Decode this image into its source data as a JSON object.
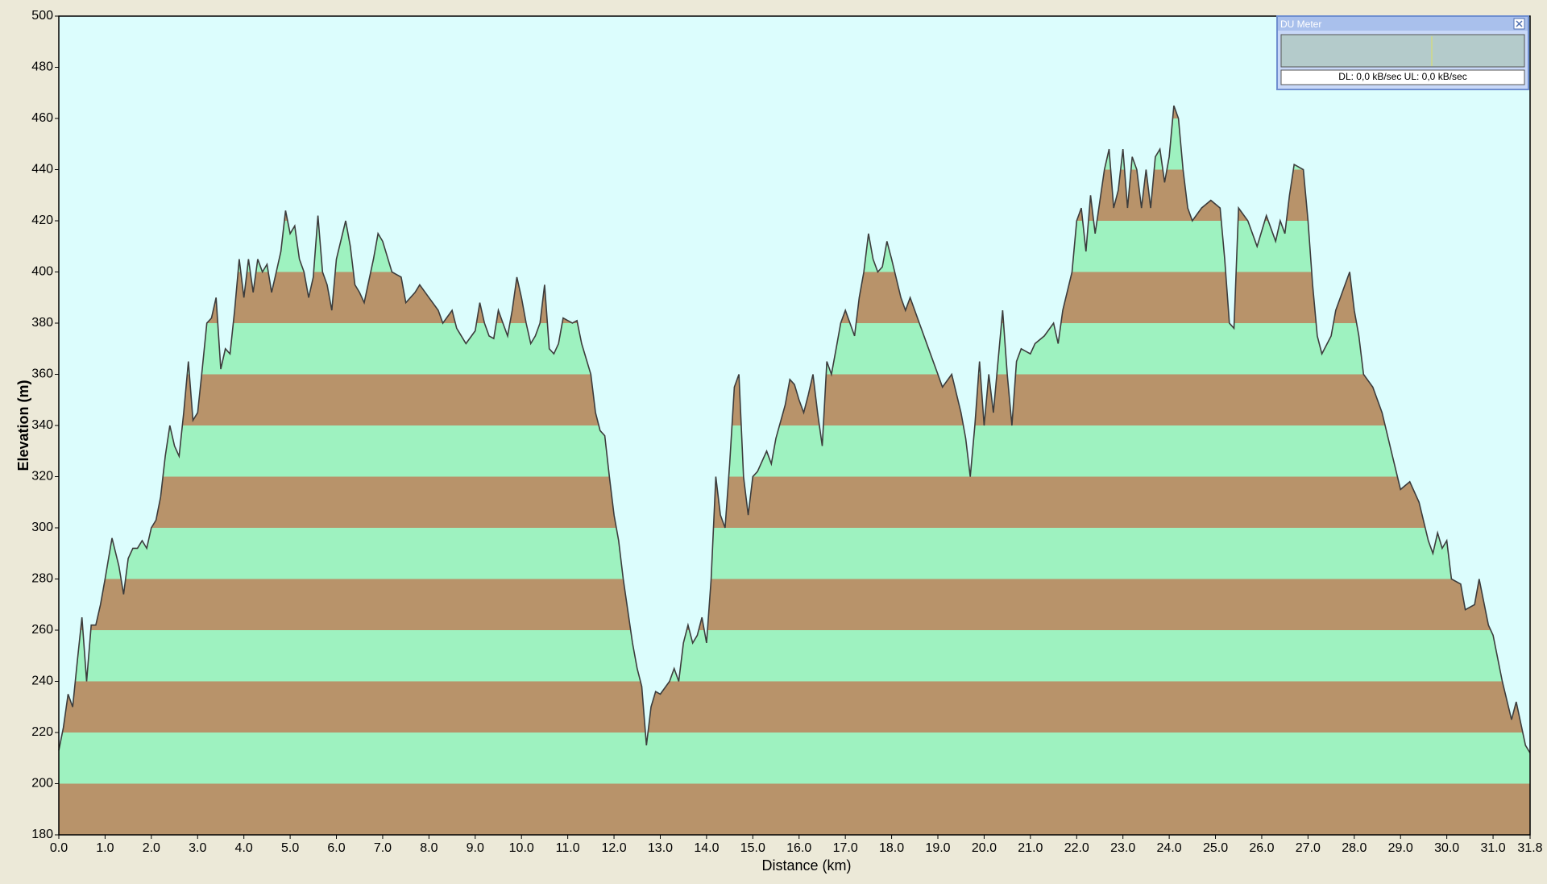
{
  "chart_data": {
    "type": "area",
    "xlabel": "Distance   (km)",
    "ylabel": "Elevation (m)",
    "x": [
      0.0,
      0.1,
      0.2,
      0.3,
      0.4,
      0.5,
      0.6,
      0.7,
      0.8,
      0.9,
      1.0,
      1.15,
      1.3,
      1.4,
      1.5,
      1.6,
      1.7,
      1.8,
      1.9,
      2.0,
      2.1,
      2.2,
      2.3,
      2.4,
      2.5,
      2.6,
      2.7,
      2.8,
      2.9,
      3.0,
      3.1,
      3.2,
      3.3,
      3.4,
      3.5,
      3.6,
      3.7,
      3.8,
      3.9,
      4.0,
      4.1,
      4.2,
      4.3,
      4.4,
      4.5,
      4.6,
      4.7,
      4.8,
      4.9,
      5.0,
      5.1,
      5.2,
      5.3,
      5.4,
      5.5,
      5.6,
      5.7,
      5.8,
      5.9,
      6.0,
      6.2,
      6.3,
      6.4,
      6.5,
      6.6,
      6.8,
      6.9,
      7.0,
      7.2,
      7.4,
      7.5,
      7.7,
      7.8,
      8.0,
      8.2,
      8.3,
      8.5,
      8.6,
      8.8,
      9.0,
      9.1,
      9.2,
      9.3,
      9.4,
      9.5,
      9.6,
      9.7,
      9.8,
      9.9,
      10.0,
      10.1,
      10.2,
      10.3,
      10.4,
      10.5,
      10.6,
      10.7,
      10.8,
      10.9,
      11.1,
      11.2,
      11.3,
      11.5,
      11.6,
      11.7,
      11.8,
      11.9,
      12.0,
      12.1,
      12.2,
      12.4,
      12.5,
      12.6,
      12.7,
      12.8,
      12.9,
      13.0,
      13.2,
      13.3,
      13.4,
      13.5,
      13.6,
      13.7,
      13.8,
      13.9,
      14.0,
      14.1,
      14.2,
      14.3,
      14.4,
      14.5,
      14.6,
      14.7,
      14.8,
      14.9,
      15.0,
      15.1,
      15.3,
      15.4,
      15.5,
      15.7,
      15.8,
      15.9,
      16.0,
      16.1,
      16.2,
      16.3,
      16.4,
      16.5,
      16.6,
      16.7,
      16.8,
      16.9,
      17.0,
      17.2,
      17.3,
      17.4,
      17.5,
      17.6,
      17.7,
      17.8,
      17.9,
      18.0,
      18.2,
      18.3,
      18.4,
      18.6,
      18.8,
      19.0,
      19.1,
      19.3,
      19.5,
      19.6,
      19.7,
      19.8,
      19.9,
      20.0,
      20.1,
      20.2,
      20.4,
      20.5,
      20.6,
      20.7,
      20.8,
      21.0,
      21.1,
      21.3,
      21.5,
      21.6,
      21.7,
      21.9,
      22.0,
      22.1,
      22.2,
      22.3,
      22.4,
      22.6,
      22.7,
      22.8,
      22.9,
      23.0,
      23.1,
      23.2,
      23.3,
      23.4,
      23.5,
      23.6,
      23.7,
      23.8,
      23.9,
      24.0,
      24.1,
      24.2,
      24.3,
      24.4,
      24.5,
      24.7,
      24.9,
      25.1,
      25.2,
      25.3,
      25.4,
      25.5,
      25.7,
      25.9,
      26.1,
      26.3,
      26.4,
      26.5,
      26.6,
      26.7,
      26.9,
      27.0,
      27.1,
      27.2,
      27.3,
      27.5,
      27.6,
      27.8,
      27.9,
      28.0,
      28.1,
      28.2,
      28.4,
      28.6,
      28.8,
      29.0,
      29.2,
      29.4,
      29.6,
      29.7,
      29.8,
      29.9,
      30.0,
      30.1,
      30.3,
      30.4,
      30.6,
      30.7,
      30.9,
      31.0,
      31.2,
      31.4,
      31.5,
      31.7,
      31.8
    ],
    "values": [
      213,
      222,
      235,
      230,
      248,
      265,
      240,
      262,
      262,
      270,
      280,
      296,
      285,
      274,
      288,
      292,
      292,
      295,
      292,
      300,
      303,
      312,
      328,
      340,
      332,
      328,
      345,
      365,
      342,
      345,
      362,
      380,
      382,
      390,
      362,
      370,
      368,
      385,
      405,
      390,
      405,
      392,
      405,
      400,
      403,
      392,
      400,
      408,
      424,
      415,
      418,
      405,
      400,
      390,
      398,
      422,
      400,
      395,
      385,
      405,
      420,
      410,
      395,
      392,
      388,
      405,
      415,
      412,
      400,
      398,
      388,
      392,
      395,
      390,
      385,
      380,
      385,
      378,
      372,
      377,
      388,
      380,
      375,
      374,
      385,
      380,
      375,
      385,
      398,
      390,
      380,
      372,
      375,
      380,
      395,
      370,
      368,
      372,
      382,
      380,
      381,
      372,
      360,
      345,
      338,
      336,
      320,
      305,
      295,
      280,
      255,
      245,
      238,
      215,
      230,
      236,
      235,
      240,
      245,
      240,
      255,
      262,
      255,
      258,
      265,
      255,
      280,
      320,
      305,
      300,
      325,
      355,
      360,
      320,
      305,
      320,
      322,
      330,
      325,
      335,
      348,
      358,
      356,
      350,
      345,
      352,
      360,
      345,
      332,
      365,
      360,
      370,
      380,
      385,
      375,
      390,
      400,
      415,
      405,
      400,
      402,
      412,
      405,
      390,
      385,
      390,
      380,
      370,
      360,
      355,
      360,
      345,
      335,
      320,
      340,
      365,
      340,
      360,
      345,
      385,
      360,
      340,
      365,
      370,
      368,
      372,
      375,
      380,
      372,
      385,
      400,
      420,
      425,
      408,
      430,
      415,
      440,
      448,
      425,
      432,
      448,
      425,
      445,
      440,
      425,
      440,
      425,
      445,
      448,
      435,
      445,
      465,
      460,
      440,
      425,
      420,
      425,
      428,
      425,
      405,
      380,
      378,
      425,
      420,
      410,
      422,
      412,
      420,
      415,
      430,
      442,
      440,
      420,
      395,
      375,
      368,
      375,
      385,
      395,
      400,
      385,
      375,
      360,
      355,
      345,
      330,
      315,
      318,
      310,
      295,
      290,
      298,
      292,
      295,
      280,
      278,
      268,
      270,
      280,
      262,
      258,
      240,
      225,
      232,
      215,
      212
    ],
    "color": "#3c3c3c",
    "band_colors": [
      "#b8936a",
      "#9ef2c0"
    ],
    "background": "#dcfdfd",
    "xlim": [
      0,
      31.8
    ],
    "xticks": [
      {
        "value": 0,
        "label": "0.0"
      },
      {
        "value": 1,
        "label": "1.0"
      },
      {
        "value": 2,
        "label": "2.0"
      },
      {
        "value": 3,
        "label": "3.0"
      },
      {
        "value": 4,
        "label": "4.0"
      },
      {
        "value": 5,
        "label": "5.0"
      },
      {
        "value": 6,
        "label": "6.0"
      },
      {
        "value": 7,
        "label": "7.0"
      },
      {
        "value": 8,
        "label": "8.0"
      },
      {
        "value": 9,
        "label": "9.0"
      },
      {
        "value": 10,
        "label": "10.0"
      },
      {
        "value": 11,
        "label": "11.0"
      },
      {
        "value": 12,
        "label": "12.0"
      },
      {
        "value": 13,
        "label": "13.0"
      },
      {
        "value": 14,
        "label": "14.0"
      },
      {
        "value": 15,
        "label": "15.0"
      },
      {
        "value": 16,
        "label": "16.0"
      },
      {
        "value": 17,
        "label": "17.0"
      },
      {
        "value": 18,
        "label": "18.0"
      },
      {
        "value": 19,
        "label": "19.0"
      },
      {
        "value": 20,
        "label": "20.0"
      },
      {
        "value": 21,
        "label": "21.0"
      },
      {
        "value": 22,
        "label": "22.0"
      },
      {
        "value": 23,
        "label": "23.0"
      },
      {
        "value": 24,
        "label": "24.0"
      },
      {
        "value": 25,
        "label": "25.0"
      },
      {
        "value": 26,
        "label": "26.0"
      },
      {
        "value": 27,
        "label": "27.0"
      },
      {
        "value": 28,
        "label": "28.0"
      },
      {
        "value": 29,
        "label": "29.0"
      },
      {
        "value": 30,
        "label": "30.0"
      },
      {
        "value": 31,
        "label": "31.0"
      },
      {
        "value": 31.8,
        "label": "31.8"
      }
    ],
    "ylim": [
      180,
      500
    ],
    "yticks": [
      180,
      200,
      220,
      240,
      260,
      280,
      300,
      320,
      340,
      360,
      380,
      400,
      420,
      440,
      460,
      480,
      500
    ]
  },
  "du_meter": {
    "title": "DU Meter",
    "status": "DL: 0,0 kB/sec  UL: 0,0 kB/sec"
  }
}
